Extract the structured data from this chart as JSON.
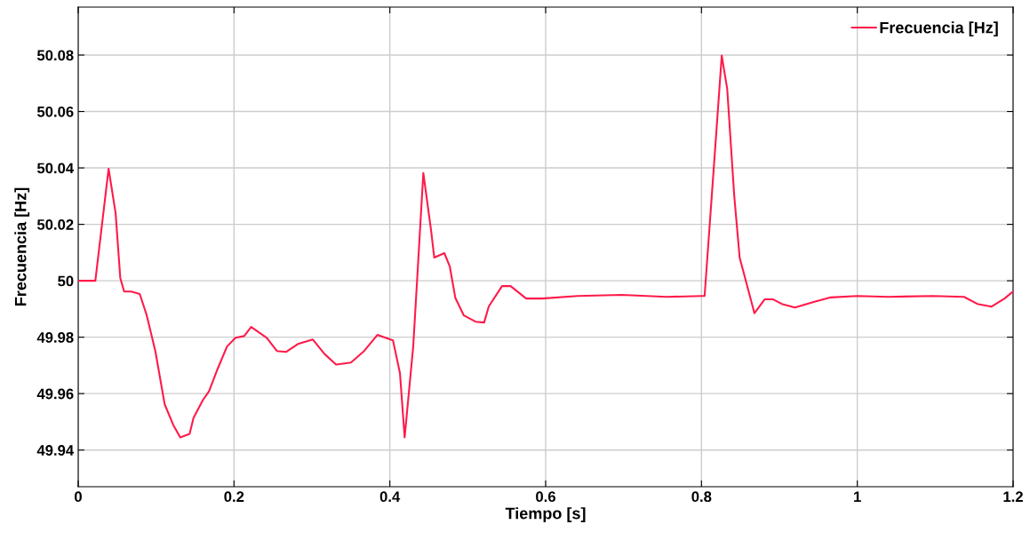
{
  "chart_data": {
    "type": "line",
    "xlabel": "Tiempo [s]",
    "ylabel": "Frecuencia [Hz]",
    "xlim": [
      0,
      1.2
    ],
    "xticks": [
      0,
      0.2,
      0.4,
      0.6,
      0.8,
      1,
      1.2
    ],
    "ylim": [
      49.927,
      50.097
    ],
    "yticks": [
      49.94,
      49.96,
      49.98,
      50,
      50.02,
      50.04,
      50.06,
      50.08
    ],
    "grid": true,
    "legend": "top right",
    "line_style": "solid",
    "marker": "none",
    "series": [
      {
        "name": "Frecuencia [Hz]",
        "color": "#ff1a4a",
        "x": [
          0,
          0.022,
          0.039,
          0.048,
          0.054,
          0.059,
          0.068,
          0.079,
          0.088,
          0.099,
          0.111,
          0.122,
          0.131,
          0.143,
          0.148,
          0.16,
          0.168,
          0.179,
          0.191,
          0.202,
          0.213,
          0.222,
          0.242,
          0.255,
          0.267,
          0.282,
          0.301,
          0.316,
          0.331,
          0.35,
          0.367,
          0.384,
          0.404,
          0.413,
          0.419,
          0.43,
          0.436,
          0.443,
          0.453,
          0.457,
          0.47,
          0.477,
          0.484,
          0.495,
          0.51,
          0.521,
          0.527,
          0.544,
          0.555,
          0.575,
          0.595,
          0.641,
          0.698,
          0.755,
          0.801,
          0.804,
          0.819,
          0.826,
          0.833,
          0.842,
          0.849,
          0.868,
          0.881,
          0.892,
          0.903,
          0.92,
          0.943,
          0.966,
          1.0,
          1.04,
          1.097,
          1.137,
          1.154,
          1.172,
          1.189,
          1.2
        ],
        "values": [
          50.0,
          50.0,
          50.0397,
          50.024,
          50.001,
          49.9962,
          49.9962,
          49.9953,
          49.9877,
          49.9751,
          49.9562,
          49.9489,
          49.9445,
          49.9457,
          49.9514,
          49.9577,
          49.9609,
          49.9688,
          49.9767,
          49.9798,
          49.9804,
          49.9836,
          49.9798,
          49.9751,
          49.9748,
          49.9776,
          49.9792,
          49.9741,
          49.9703,
          49.971,
          49.9751,
          49.9808,
          49.9789,
          49.9672,
          49.9445,
          49.9767,
          50.005,
          50.0382,
          50.0177,
          50.0082,
          50.0098,
          50.005,
          49.994,
          49.9877,
          49.9855,
          49.9852,
          49.9909,
          49.9981,
          49.9981,
          49.9937,
          49.9937,
          49.9946,
          49.995,
          49.9943,
          49.9946,
          49.9946,
          50.0524,
          50.0798,
          50.0681,
          50.0303,
          50.0082,
          49.9885,
          49.9934,
          49.9934,
          49.9918,
          49.9905,
          49.9924,
          49.9941,
          49.9946,
          49.9943,
          49.9946,
          49.9943,
          49.9918,
          49.9908,
          49.9937,
          49.9962
        ]
      }
    ]
  }
}
